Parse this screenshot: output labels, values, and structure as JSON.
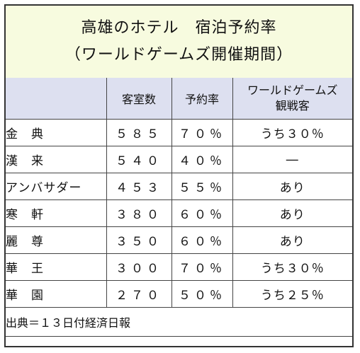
{
  "title": {
    "line1": "高雄のホテル　宿泊予約率",
    "line2": "（ワールドゲームズ開催期間）"
  },
  "table": {
    "headers": {
      "name": "",
      "rooms": "客室数",
      "rate": "予約率",
      "guests_line1": "ワールドゲームズ",
      "guests_line2": "観戦客"
    },
    "rows": [
      {
        "name": "金　典",
        "rooms": "５８５",
        "rate": "７０％",
        "guests": "うち３０％"
      },
      {
        "name": "漢　来",
        "rooms": "５４０",
        "rate": "４０％",
        "guests": "―"
      },
      {
        "name": "アンバサダー",
        "rooms": "４５３",
        "rate": "５５％",
        "guests": "あり"
      },
      {
        "name": "寒　軒",
        "rooms": "３８０",
        "rate": "６０％",
        "guests": "あり"
      },
      {
        "name": "麗　尊",
        "rooms": "３５０",
        "rate": "６０％",
        "guests": "あり"
      },
      {
        "name": "華　王",
        "rooms": "３００",
        "rate": "７０％",
        "guests": "うち３０％"
      },
      {
        "name": "華　園",
        "rooms": "２７０",
        "rate": "５０％",
        "guests": "うち２５％"
      }
    ]
  },
  "source": "出典＝１３日付経済日報",
  "colors": {
    "title_bg": "#f7fbdf",
    "header_bg": "#dde0f0",
    "border": "#444444"
  }
}
